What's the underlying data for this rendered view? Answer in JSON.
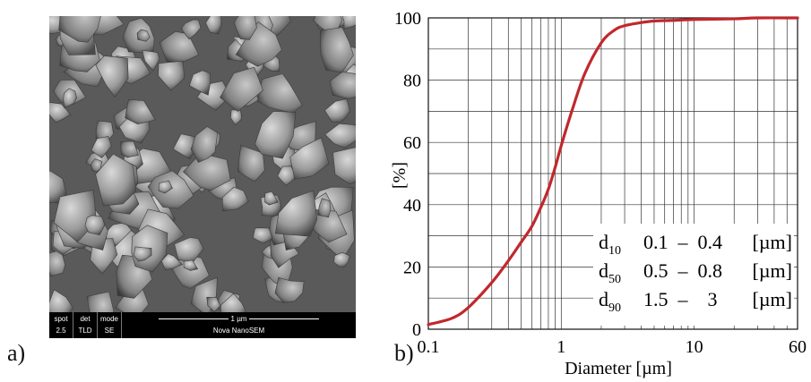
{
  "panel_a_label": "a)",
  "panel_b_label": "b)",
  "sem": {
    "spot_label": "spot",
    "spot_value": "2.5",
    "det_label": "det",
    "det_value": "TLD",
    "mode_label": "mode",
    "mode_value": "SE",
    "scale_label": "1 µm",
    "instrument": "Nova NanoSEM"
  },
  "chart_data": {
    "type": "line",
    "xlabel": "Diameter  [µm]",
    "ylabel": "[%]",
    "xscale": "log",
    "xlim": [
      0.1,
      60
    ],
    "ylim": [
      0,
      100
    ],
    "xticks": [
      "0.1",
      "1",
      "10",
      "60"
    ],
    "yticks": [
      "0",
      "20",
      "40",
      "60",
      "80",
      "100"
    ],
    "grid": true,
    "series": [
      {
        "color": "#c0282d",
        "x": [
          0.1,
          0.15,
          0.2,
          0.3,
          0.4,
          0.5,
          0.6,
          0.7,
          0.8,
          0.9,
          1.0,
          1.2,
          1.5,
          2.0,
          2.5,
          3.0,
          4.0,
          5.0,
          7.0,
          10.0,
          20.0,
          30.0,
          60.0
        ],
        "values": [
          1.5,
          3.5,
          7,
          15,
          22,
          28,
          33,
          39,
          45,
          52,
          59,
          70,
          82,
          92,
          96,
          97.5,
          98.5,
          99,
          99.2,
          99.5,
          99.7,
          100,
          100
        ]
      }
    ],
    "annotations": [
      {
        "symbol": "d",
        "subscript": "10",
        "range": "0.1  –  0.4",
        "unit": "[µm]"
      },
      {
        "symbol": "d",
        "subscript": "50",
        "range": "0.5  –  0.8",
        "unit": "[µm]"
      },
      {
        "symbol": "d",
        "subscript": "90",
        "range": "1.5  –    3",
        "unit": "[µm]"
      }
    ]
  }
}
